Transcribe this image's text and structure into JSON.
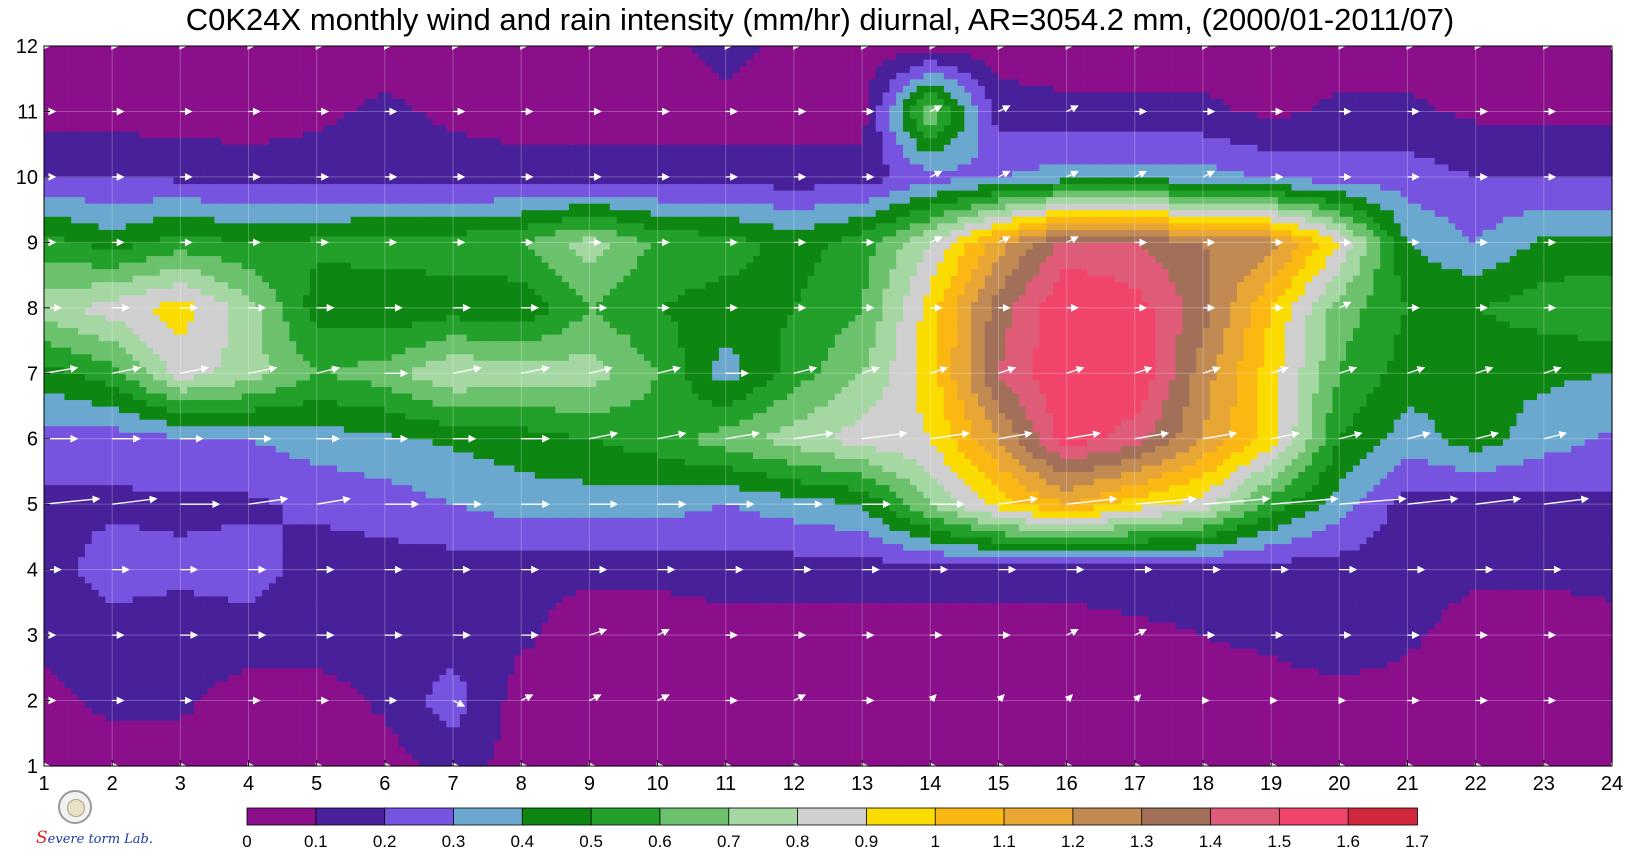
{
  "chart_data": {
    "type": "heatmap",
    "title": "C0K24X monthly wind and rain intensity (mm/hr) diurnal, AR=3054.2 mm, (2000/01-2011/07)",
    "x_ticks": [
      1,
      2,
      3,
      4,
      5,
      6,
      7,
      8,
      9,
      10,
      11,
      12,
      13,
      14,
      15,
      16,
      17,
      18,
      19,
      20,
      21,
      22,
      23,
      24
    ],
    "y_ticks": [
      1,
      2,
      3,
      4,
      5,
      6,
      7,
      8,
      9,
      10,
      11,
      12
    ],
    "xlim": [
      1,
      24
    ],
    "ylim": [
      1,
      12
    ],
    "grid": true,
    "colorbar": {
      "levels": [
        0,
        0.1,
        0.2,
        0.3,
        0.4,
        0.5,
        0.6,
        0.7,
        0.8,
        0.9,
        1,
        1.1,
        1.2,
        1.3,
        1.4,
        1.5,
        1.6,
        1.7
      ],
      "labels": [
        "0",
        "0.1",
        "0.2",
        "0.3",
        "0.4",
        "0.5",
        "0.6",
        "0.7",
        "0.8",
        "0.9",
        "1",
        "1.1",
        "1.2",
        "1.3",
        "1.4",
        "1.5",
        "1.6",
        "1.7"
      ],
      "colors": [
        "#8b0f8b",
        "#47209a",
        "#7754e0",
        "#6aa8cf",
        "#0e8612",
        "#22a02a",
        "#6cc16d",
        "#a4d7a2",
        "#cfcfcf",
        "#fbdc00",
        "#fbb712",
        "#e8a735",
        "#c08a52",
        "#a27058",
        "#df5c78",
        "#f0446a",
        "#d2283e"
      ]
    },
    "rain_intensity": {
      "rows_y": [
        1,
        2,
        3,
        4,
        5,
        6,
        7,
        8,
        9,
        10,
        11,
        12
      ],
      "cols_x": [
        1,
        2,
        3,
        4,
        5,
        6,
        7,
        8,
        9,
        10,
        11,
        12,
        13,
        14,
        15,
        16,
        17,
        18,
        19,
        20,
        21,
        22,
        23,
        24
      ],
      "values": [
        [
          0.05,
          0.05,
          0.05,
          0.05,
          0.05,
          0.05,
          0.15,
          0.05,
          0.05,
          0.05,
          0.05,
          0.05,
          0.05,
          0.05,
          0.05,
          0.05,
          0.05,
          0.05,
          0.05,
          0.05,
          0.05,
          0.05,
          0.05,
          0.05
        ],
        [
          0.08,
          0.12,
          0.12,
          0.05,
          0.05,
          0.12,
          0.25,
          0.05,
          0.05,
          0.05,
          0.05,
          0.05,
          0.05,
          0.05,
          0.05,
          0.05,
          0.05,
          0.05,
          0.05,
          0.05,
          0.05,
          0.05,
          0.05,
          0.05
        ],
        [
          0.12,
          0.15,
          0.15,
          0.15,
          0.15,
          0.15,
          0.15,
          0.12,
          0.05,
          0.05,
          0.05,
          0.05,
          0.05,
          0.05,
          0.05,
          0.05,
          0.08,
          0.1,
          0.12,
          0.18,
          0.12,
          0.05,
          0.05,
          0.08
        ],
        [
          0.15,
          0.25,
          0.22,
          0.25,
          0.15,
          0.15,
          0.15,
          0.12,
          0.12,
          0.12,
          0.15,
          0.15,
          0.15,
          0.15,
          0.15,
          0.15,
          0.15,
          0.15,
          0.15,
          0.15,
          0.15,
          0.12,
          0.12,
          0.12
        ],
        [
          0.18,
          0.18,
          0.18,
          0.18,
          0.22,
          0.25,
          0.3,
          0.35,
          0.35,
          0.35,
          0.3,
          0.35,
          0.4,
          0.7,
          0.95,
          1.1,
          0.95,
          0.85,
          0.55,
          0.35,
          0.15,
          0.15,
          0.15,
          0.18
        ],
        [
          0.25,
          0.25,
          0.28,
          0.3,
          0.35,
          0.38,
          0.42,
          0.45,
          0.5,
          0.55,
          0.65,
          0.75,
          0.85,
          0.9,
          1.2,
          1.55,
          1.45,
          1.2,
          0.95,
          0.5,
          0.35,
          0.45,
          0.35,
          0.28
        ],
        [
          0.45,
          0.55,
          0.85,
          0.75,
          0.6,
          0.65,
          0.8,
          0.75,
          0.75,
          0.6,
          0.35,
          0.55,
          0.7,
          0.95,
          1.4,
          1.6,
          1.6,
          1.25,
          0.95,
          0.6,
          0.45,
          0.42,
          0.42,
          0.4
        ],
        [
          0.75,
          0.85,
          0.95,
          0.75,
          0.45,
          0.42,
          0.45,
          0.42,
          0.6,
          0.5,
          0.45,
          0.5,
          0.6,
          0.95,
          1.35,
          1.6,
          1.55,
          1.35,
          1.0,
          0.65,
          0.5,
          0.5,
          0.55,
          0.6
        ],
        [
          0.55,
          0.45,
          0.55,
          0.5,
          0.52,
          0.55,
          0.55,
          0.6,
          0.75,
          0.58,
          0.55,
          0.45,
          0.55,
          0.8,
          1.15,
          1.45,
          1.4,
          1.3,
          1.25,
          0.9,
          0.4,
          0.3,
          0.42,
          0.42
        ],
        [
          0.2,
          0.2,
          0.18,
          0.15,
          0.15,
          0.15,
          0.15,
          0.15,
          0.15,
          0.15,
          0.15,
          0.15,
          0.15,
          0.25,
          0.3,
          0.35,
          0.35,
          0.35,
          0.28,
          0.25,
          0.25,
          0.2,
          0.2,
          0.2
        ],
        [
          0.05,
          0.05,
          0.05,
          0.05,
          0.08,
          0.12,
          0.08,
          0.05,
          0.05,
          0.05,
          0.05,
          0.05,
          0.05,
          0.7,
          0.15,
          0.12,
          0.12,
          0.12,
          0.08,
          0.12,
          0.12,
          0.08,
          0.08,
          0.08
        ],
        [
          0.05,
          0.05,
          0.05,
          0.05,
          0.05,
          0.05,
          0.05,
          0.05,
          0.05,
          0.05,
          0.15,
          0.05,
          0.05,
          0.05,
          0.05,
          0.05,
          0.05,
          0.05,
          0.05,
          0.05,
          0.05,
          0.05,
          0.05,
          0.05
        ]
      ]
    },
    "wind_vectors_u": [
      [
        0.1,
        0.1,
        0.1,
        0.1,
        0.1,
        0.1,
        0.1,
        0.1,
        0.1,
        0.1,
        0.1,
        0.1,
        0.1,
        0.1,
        0.1,
        0.1,
        0.1,
        0.1,
        0.1,
        0.1,
        0.1,
        0.1,
        0.1,
        0.1
      ],
      [
        0.2,
        0.2,
        0.2,
        0.2,
        0.2,
        0.2,
        0.2,
        0.2,
        0.2,
        0.2,
        0.2,
        0.2,
        0.2,
        0.1,
        0.1,
        0.1,
        0.1,
        0.1,
        0.1,
        0.1,
        0.2,
        0.2,
        0.2,
        0.2
      ],
      [
        0.2,
        0.2,
        0.3,
        0.3,
        0.3,
        0.3,
        0.3,
        0.3,
        0.3,
        0.2,
        0.2,
        0.2,
        0.2,
        0.2,
        0.2,
        0.2,
        0.2,
        0.2,
        0.2,
        0.2,
        0.2,
        0.2,
        0.2,
        0.2
      ],
      [
        0.3,
        0.3,
        0.3,
        0.3,
        0.3,
        0.3,
        0.3,
        0.3,
        0.3,
        0.3,
        0.3,
        0.3,
        0.3,
        0.3,
        0.3,
        0.3,
        0.3,
        0.3,
        0.3,
        0.3,
        0.3,
        0.3,
        0.3,
        0.3
      ],
      [
        1.0,
        0.8,
        0.7,
        0.7,
        0.6,
        0.6,
        0.5,
        0.5,
        0.5,
        0.5,
        0.5,
        0.5,
        0.5,
        0.6,
        0.7,
        0.9,
        1.1,
        1.2,
        1.2,
        1.2,
        0.9,
        0.8,
        0.8,
        0.8
      ],
      [
        0.6,
        0.5,
        0.4,
        0.4,
        0.4,
        0.4,
        0.4,
        0.5,
        0.5,
        0.5,
        0.6,
        0.7,
        0.8,
        0.7,
        0.6,
        0.6,
        0.6,
        0.6,
        0.5,
        0.4,
        0.4,
        0.4,
        0.4,
        0.4
      ],
      [
        0.6,
        0.5,
        0.5,
        0.5,
        0.4,
        0.4,
        0.5,
        0.5,
        0.4,
        0.4,
        0.4,
        0.4,
        0.3,
        0.3,
        0.3,
        0.3,
        0.3,
        0.3,
        0.3,
        0.3,
        0.3,
        0.3,
        0.3,
        0.3
      ],
      [
        0.3,
        0.3,
        0.3,
        0.3,
        0.3,
        0.3,
        0.3,
        0.3,
        0.3,
        0.2,
        0.2,
        0.2,
        0.2,
        0.2,
        0.2,
        0.2,
        0.2,
        0.2,
        0.2,
        0.2,
        0.2,
        0.2,
        0.2,
        0.2
      ],
      [
        0.2,
        0.2,
        0.2,
        0.2,
        0.2,
        0.2,
        0.2,
        0.2,
        0.2,
        0.2,
        0.2,
        0.2,
        0.2,
        0.2,
        0.2,
        0.2,
        0.2,
        0.2,
        0.2,
        0.2,
        0.2,
        0.2,
        0.2,
        0.2
      ],
      [
        0.2,
        0.2,
        0.2,
        0.2,
        0.2,
        0.2,
        0.2,
        0.2,
        0.2,
        0.2,
        0.2,
        0.2,
        0.2,
        0.2,
        0.2,
        0.2,
        0.2,
        0.2,
        0.2,
        0.2,
        0.2,
        0.2,
        0.2,
        0.2
      ],
      [
        0.2,
        0.2,
        0.2,
        0.2,
        0.2,
        0.2,
        0.2,
        0.2,
        0.2,
        0.2,
        0.2,
        0.2,
        0.2,
        0.2,
        0.2,
        0.2,
        0.2,
        0.2,
        0.2,
        0.2,
        0.2,
        0.2,
        0.2,
        0.2
      ],
      [
        0.1,
        0.1,
        0.1,
        0.1,
        0.1,
        0.1,
        0.1,
        0.1,
        0.1,
        0.1,
        0.1,
        0.1,
        0.1,
        0.1,
        0.1,
        0.1,
        0.1,
        0.1,
        0.1,
        0.1,
        0.1,
        0.1,
        0.1,
        0.1
      ]
    ],
    "wind_vectors_v": [
      [
        0.0,
        0.0,
        0.0,
        0.0,
        0.0,
        0.0,
        0.0,
        0.0,
        0.0,
        0.0,
        0.0,
        0.0,
        0.0,
        0.0,
        0.0,
        0.0,
        0.0,
        0.0,
        0.0,
        0.0,
        0.0,
        0.0,
        0.0,
        0.0
      ],
      [
        0.0,
        0.0,
        0.0,
        0.0,
        0.0,
        0.0,
        -0.1,
        0.1,
        0.1,
        0.1,
        0.0,
        0.1,
        0.0,
        0.1,
        0.1,
        0.1,
        0.1,
        0.0,
        0.0,
        0.0,
        0.0,
        0.0,
        0.0,
        0.0
      ],
      [
        0.0,
        0.0,
        0.0,
        0.0,
        0.0,
        0.0,
        0.0,
        0.0,
        0.1,
        0.1,
        0.0,
        0.0,
        0.0,
        0.0,
        0.0,
        0.1,
        0.1,
        0.0,
        0.0,
        0.0,
        0.0,
        0.0,
        0.0,
        0.0
      ],
      [
        0.0,
        0.0,
        0.0,
        0.0,
        0.0,
        0.0,
        0.0,
        0.0,
        0.0,
        0.0,
        0.0,
        0.0,
        0.0,
        0.0,
        0.0,
        0.0,
        0.0,
        0.0,
        0.0,
        0.0,
        0.0,
        0.0,
        0.0,
        0.0
      ],
      [
        0.1,
        0.1,
        0.0,
        0.1,
        0.1,
        0.0,
        0.0,
        0.0,
        0.0,
        0.0,
        0.0,
        0.0,
        0.0,
        0.0,
        0.1,
        0.1,
        0.1,
        0.1,
        0.1,
        0.1,
        0.1,
        0.1,
        0.1,
        0.1
      ],
      [
        0.0,
        0.0,
        0.0,
        0.0,
        0.0,
        0.0,
        0.0,
        0.0,
        0.1,
        0.1,
        0.1,
        0.1,
        0.1,
        0.1,
        0.1,
        0.1,
        0.1,
        0.1,
        0.1,
        0.1,
        0.1,
        0.1,
        0.1,
        0.1
      ],
      [
        0.1,
        0.1,
        0.1,
        0.1,
        0.1,
        0.0,
        0.1,
        0.1,
        0.1,
        0.1,
        0.0,
        0.1,
        0.1,
        0.1,
        0.1,
        0.1,
        0.1,
        0.1,
        0.1,
        0.1,
        0.1,
        0.1,
        0.1,
        0.1
      ],
      [
        0.0,
        0.0,
        0.0,
        0.0,
        0.0,
        0.0,
        0.0,
        0.0,
        0.0,
        0.0,
        0.0,
        0.0,
        0.0,
        0.0,
        0.0,
        0.0,
        0.0,
        0.0,
        0.0,
        0.1,
        0.0,
        0.0,
        0.0,
        0.1
      ],
      [
        0.0,
        0.0,
        0.0,
        0.0,
        0.0,
        0.0,
        0.0,
        0.0,
        0.0,
        0.0,
        0.0,
        0.0,
        0.0,
        0.1,
        0.1,
        0.1,
        0.0,
        0.0,
        0.0,
        0.0,
        0.0,
        0.0,
        0.0,
        0.0
      ],
      [
        0.0,
        0.0,
        0.0,
        0.0,
        0.0,
        0.0,
        0.0,
        0.0,
        0.0,
        0.0,
        0.0,
        0.0,
        0.0,
        0.1,
        0.1,
        0.1,
        0.1,
        0.1,
        0.0,
        0.0,
        0.0,
        0.0,
        0.0,
        0.0
      ],
      [
        0.0,
        0.0,
        0.0,
        0.0,
        0.0,
        0.0,
        0.0,
        0.0,
        0.0,
        0.0,
        0.0,
        0.0,
        0.0,
        0.1,
        0.1,
        0.1,
        0.0,
        0.0,
        0.0,
        0.0,
        0.0,
        0.0,
        0.0,
        0.0
      ],
      [
        0.0,
        0.0,
        0.0,
        0.0,
        0.0,
        0.0,
        0.0,
        0.0,
        0.0,
        0.0,
        0.0,
        0.0,
        0.0,
        0.0,
        0.0,
        0.0,
        0.0,
        0.0,
        0.0,
        0.0,
        0.0,
        0.0,
        0.0,
        0.0
      ]
    ]
  },
  "logo": {
    "lab_text_s": "S",
    "lab_text_rest": "evere",
    "lab_text_storm": "torm",
    "lab_text_lab": "Lab."
  }
}
